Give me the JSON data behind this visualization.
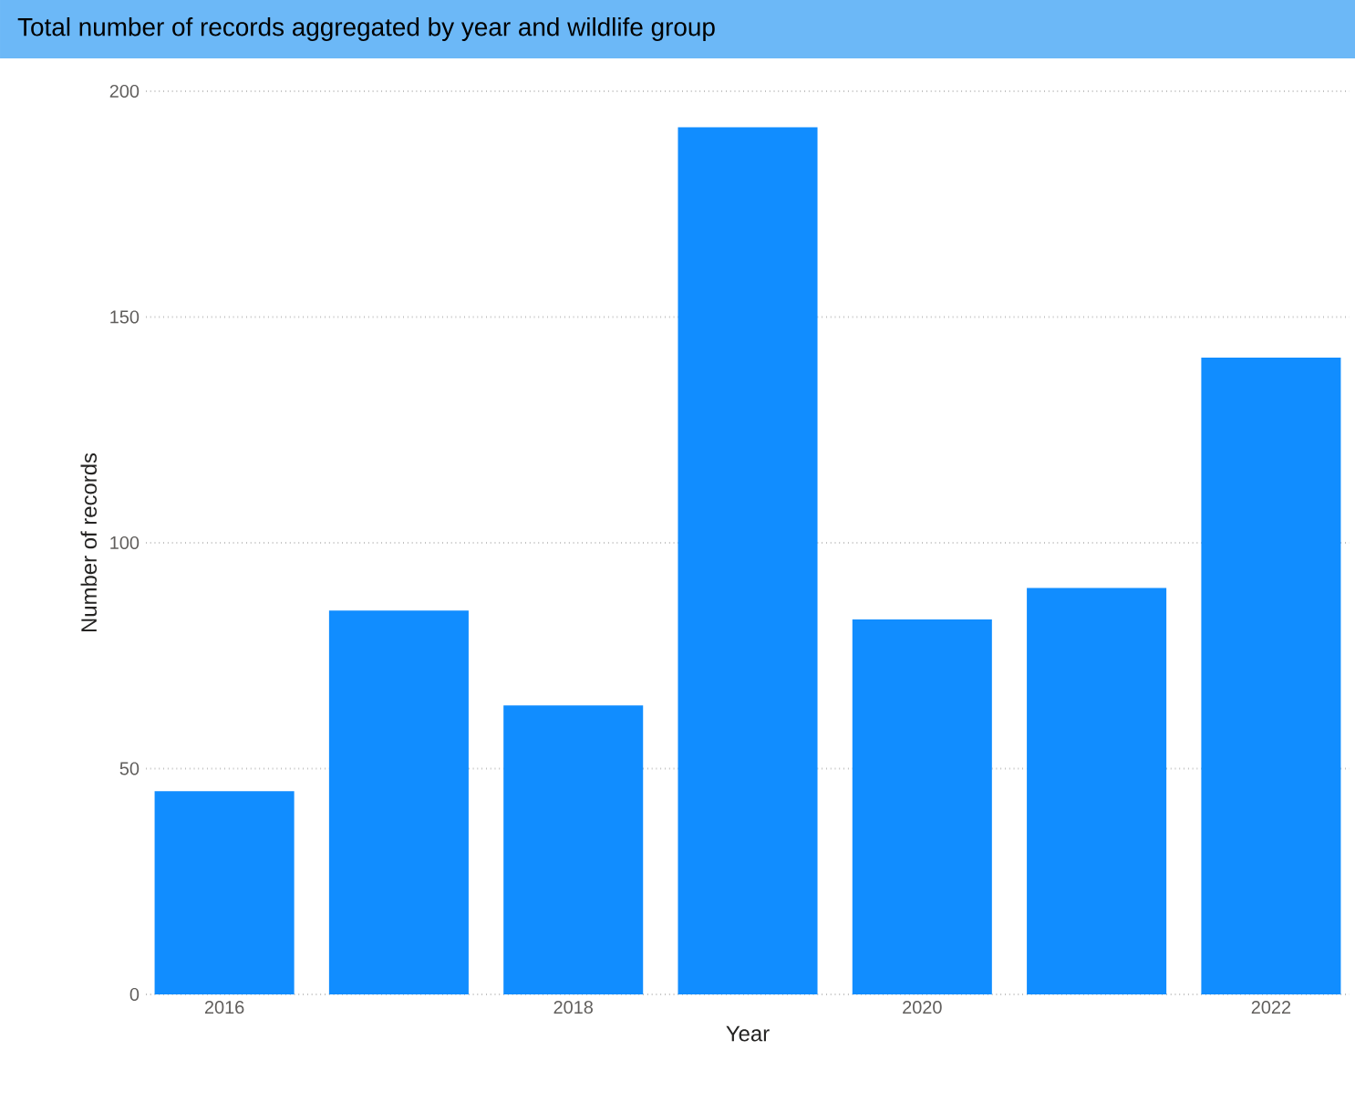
{
  "chart_data": {
    "type": "bar",
    "title": "Total number of records aggregated by year and wildlife group",
    "xlabel": "Year",
    "ylabel": "Number of records",
    "x": [
      2016,
      2017,
      2018,
      2019,
      2020,
      2021,
      2022
    ],
    "values": [
      45,
      85,
      64,
      192,
      83,
      90,
      141
    ],
    "color": "#118dff",
    "xlim": [
      2015.55,
      2022.45
    ],
    "xticks": [
      2016,
      2018,
      2020,
      2022
    ],
    "ylim": [
      0,
      200
    ],
    "yticks": [
      0,
      50,
      100,
      150,
      200
    ],
    "grid": "y"
  }
}
